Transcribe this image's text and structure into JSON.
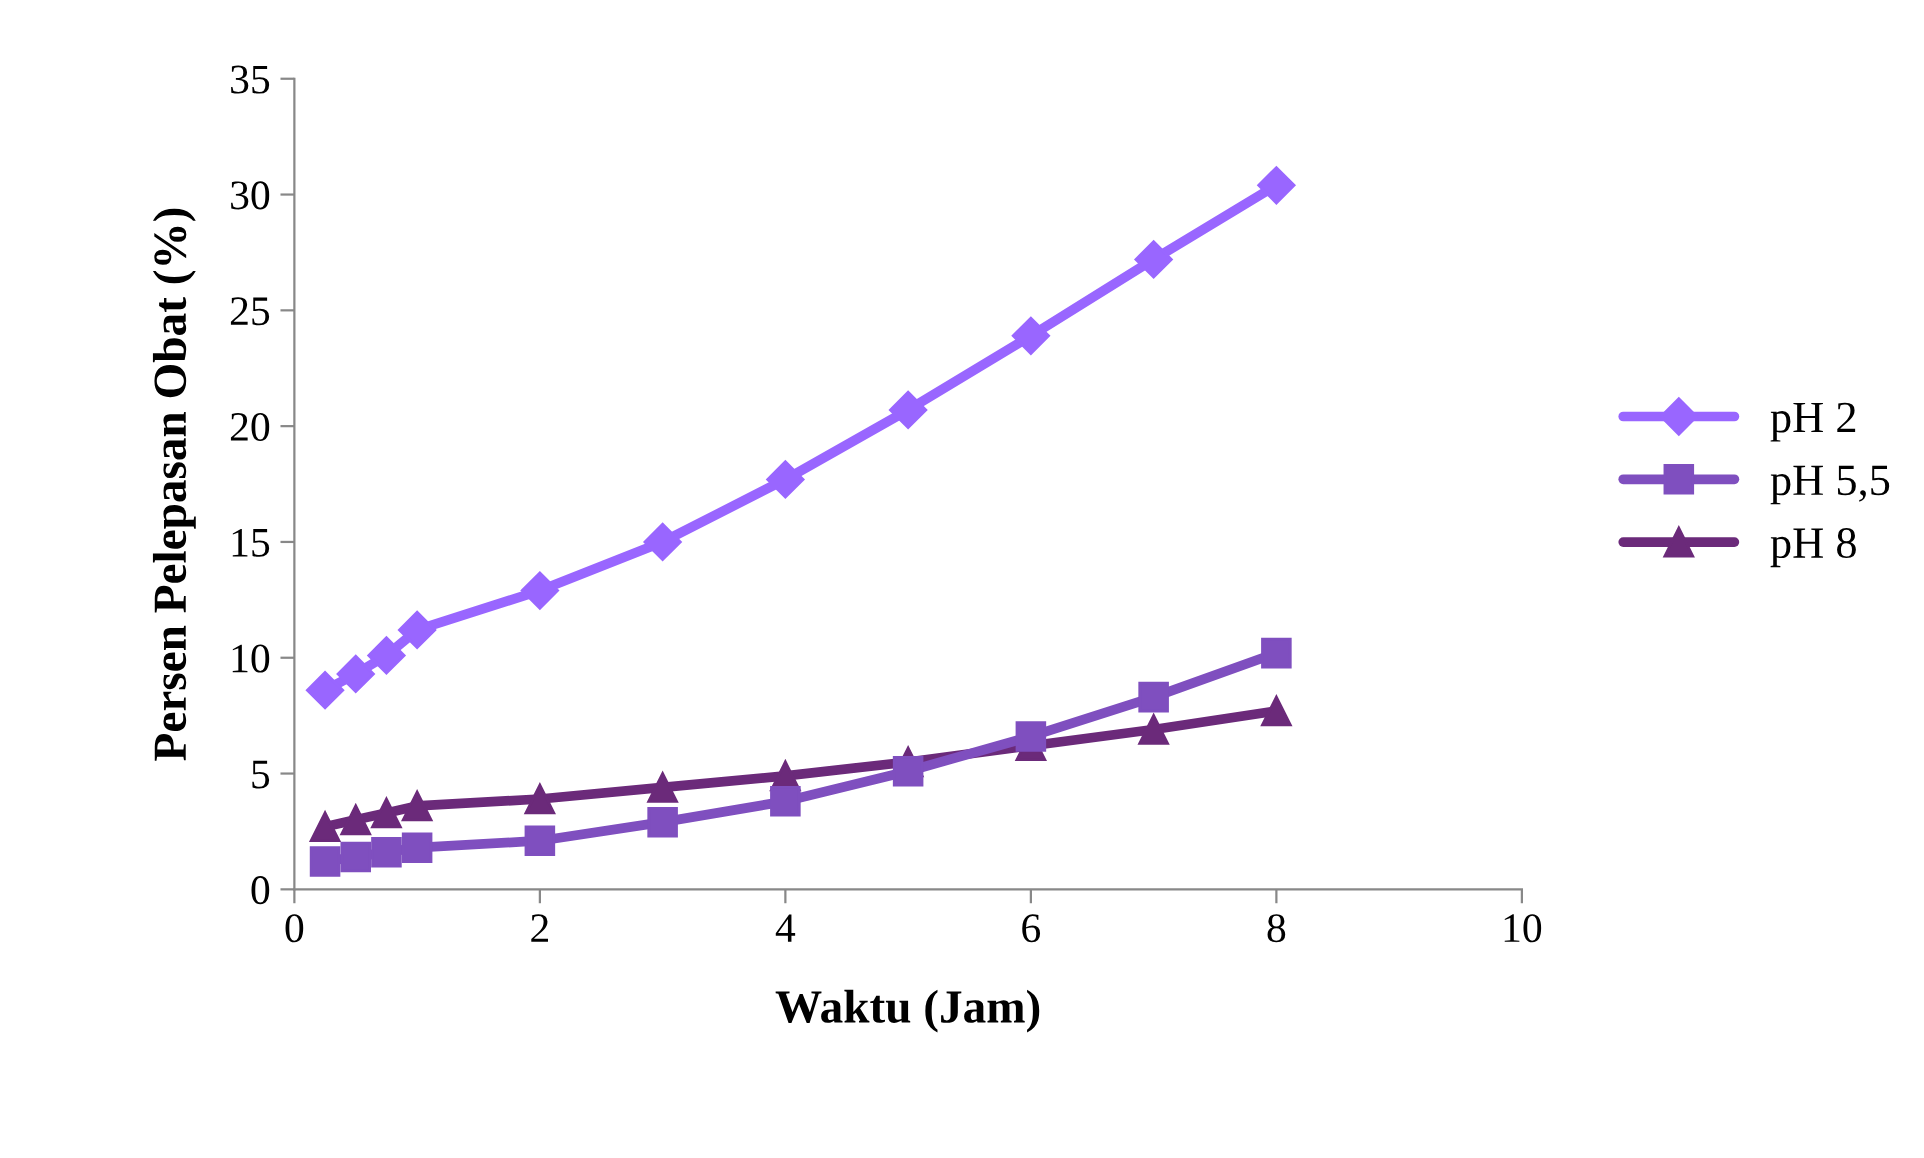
{
  "chart_data": {
    "type": "line",
    "xlabel": "Waktu (Jam)",
    "ylabel": "Persen Pelepasan Obat (%)",
    "x": [
      0.25,
      0.5,
      0.75,
      1,
      2,
      3,
      4,
      5,
      6,
      7,
      8
    ],
    "series": [
      {
        "name": "pH 2",
        "color": "#9966ff",
        "marker": "diamond",
        "values": [
          8.6,
          9.3,
          10.1,
          11.2,
          12.9,
          15.0,
          17.7,
          20.7,
          23.9,
          27.2,
          30.4
        ]
      },
      {
        "name": "pH 5,5",
        "color": "#7f4fbf",
        "marker": "square",
        "values": [
          1.2,
          1.4,
          1.6,
          1.8,
          2.1,
          2.9,
          3.8,
          5.1,
          6.6,
          8.3,
          10.2
        ]
      },
      {
        "name": "pH 8",
        "color": "#6b2a7a",
        "marker": "triangle",
        "values": [
          2.7,
          3.0,
          3.3,
          3.6,
          3.9,
          4.4,
          4.9,
          5.5,
          6.2,
          6.9,
          7.7
        ]
      }
    ],
    "xlim": [
      0,
      10
    ],
    "xticks": [
      0,
      2,
      4,
      6,
      8,
      10
    ],
    "ylim": [
      0,
      35
    ],
    "yticks": [
      0,
      5,
      10,
      15,
      20,
      25,
      30,
      35
    ],
    "grid": false,
    "legend": "right",
    "line_style": "solid"
  }
}
